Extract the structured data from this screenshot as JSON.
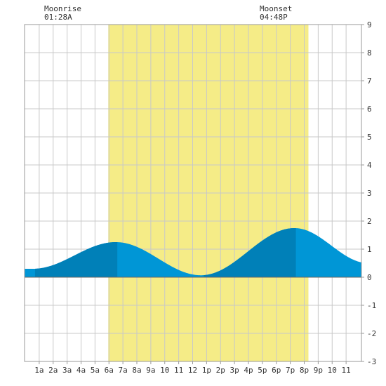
{
  "moonrise": {
    "label": "Moonrise",
    "time": "01:28A"
  },
  "moonset": {
    "label": "Moonset",
    "time": "04:48P"
  },
  "colors": {
    "daylight": "#f5ec87",
    "tide_light": "#0096d6",
    "tide_dark": "#0080b8",
    "grid": "#c8c8c8",
    "border": "#999999",
    "zero_line": "#666666"
  },
  "chart_data": {
    "type": "area",
    "title": "",
    "xlabel": "",
    "ylabel": "",
    "x_range_hours": [
      -0.05,
      24.1
    ],
    "ylim": [
      -3,
      9
    ],
    "y_ticks": [
      -3,
      -2,
      -1,
      0,
      1,
      2,
      3,
      4,
      5,
      6,
      7,
      8,
      9
    ],
    "x_tick_labels": [
      {
        "hour": 1,
        "label": "1a"
      },
      {
        "hour": 2,
        "label": "2a"
      },
      {
        "hour": 3,
        "label": "3a"
      },
      {
        "hour": 4,
        "label": "4a"
      },
      {
        "hour": 5,
        "label": "5a"
      },
      {
        "hour": 6,
        "label": "6a"
      },
      {
        "hour": 7,
        "label": "7a"
      },
      {
        "hour": 8,
        "label": "8a"
      },
      {
        "hour": 9,
        "label": "9a"
      },
      {
        "hour": 10,
        "label": "10"
      },
      {
        "hour": 11,
        "label": "11"
      },
      {
        "hour": 12,
        "label": "12"
      },
      {
        "hour": 13,
        "label": "1p"
      },
      {
        "hour": 14,
        "label": "2p"
      },
      {
        "hour": 15,
        "label": "3p"
      },
      {
        "hour": 16,
        "label": "4p"
      },
      {
        "hour": 17,
        "label": "5p"
      },
      {
        "hour": 18,
        "label": "6p"
      },
      {
        "hour": 19,
        "label": "7p"
      },
      {
        "hour": 20,
        "label": "8p"
      },
      {
        "hour": 21,
        "label": "9p"
      },
      {
        "hour": 22,
        "label": "10"
      },
      {
        "hour": 23,
        "label": "11"
      }
    ],
    "daylight_hours": [
      5.95,
      20.3
    ],
    "moonrise_hour": 1.47,
    "moonset_hour": 16.8,
    "tide_extremes": [
      {
        "hour": 0.55,
        "height": 0.3,
        "kind": "low"
      },
      {
        "hour": 6.5,
        "height": 1.25,
        "kind": "high"
      },
      {
        "hour": 12.6,
        "height": 0.07,
        "kind": "low"
      },
      {
        "hour": 19.3,
        "height": 1.75,
        "kind": "high"
      },
      {
        "hour": 24.6,
        "height": 0.5,
        "kind": "low"
      }
    ],
    "dark_shade_hours": [
      [
        0.7,
        6.6
      ],
      [
        12.8,
        19.4
      ]
    ],
    "grid": true
  }
}
